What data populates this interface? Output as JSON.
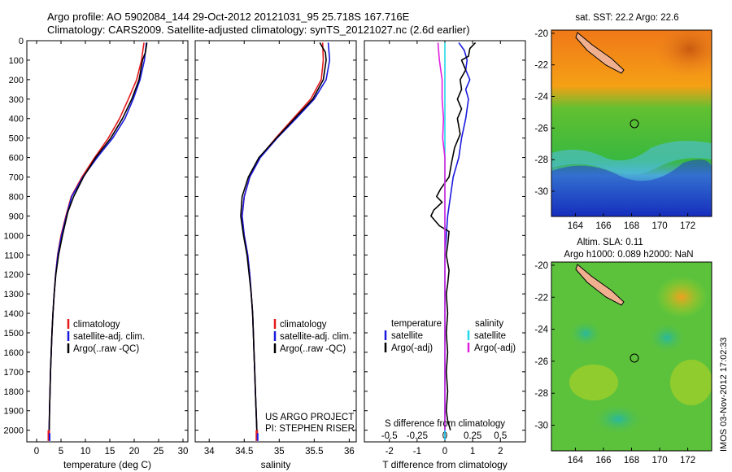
{
  "header": {
    "line1": "Argo profile: AO 5902084_144 29-Oct-2012 20121031_95 25.718S 167.716E",
    "line2": "Climatology: CARS2009. Satellite-adjusted climatology: synTS_20121027.nc (2.6d earlier)"
  },
  "colors": {
    "red": "#e41a1c",
    "blue": "#1a1adf",
    "black": "#000000",
    "cyan": "#22d8e8",
    "magenta": "#e020e0"
  },
  "panels": {
    "temperature": {
      "xlabel": "temperature (deg C)",
      "legend": [
        "climatology",
        "satellite-adj. clim.",
        "Argo(..raw -QC)"
      ]
    },
    "salinity": {
      "xlabel": "salinity",
      "legend": [
        "climatology",
        "satellite-adj. clim.",
        "Argo(..raw -QC)"
      ],
      "credit1": "US ARGO PROJECT",
      "credit2": "PI: STEPHEN RISER"
    },
    "difference": {
      "xlabel": "T difference from climatology",
      "top_xlabel": "S difference from climatology",
      "legend_head_t": "temperature",
      "legend_head_s": "salinity",
      "legend_t": [
        "satellite",
        "Argo(-adj)"
      ],
      "legend_s": [
        "satellite",
        "Argo(-adj)"
      ]
    }
  },
  "maps": {
    "sst_title": "sat. SST: 22.2  Argo: 22.6",
    "sla_title1": "Altim. SLA: 0.11",
    "sla_title2": "Argo h1000: 0.089 h2000: NaN",
    "lon_ticks": [
      "164",
      "166",
      "168",
      "170",
      "172"
    ],
    "lat_ticks": [
      "-20",
      "-22",
      "-24",
      "-26",
      "-28",
      "-30"
    ]
  },
  "footer_stamp": "IMOS 03-Nov-2012 17:02:33",
  "chart_data": [
    {
      "type": "line",
      "title": "",
      "xlabel": "temperature (deg C)",
      "ylabel": "",
      "xlim": [
        -2,
        31
      ],
      "ylim": [
        2060,
        0
      ],
      "x_ticks": [
        0,
        5,
        10,
        15,
        20,
        25,
        30
      ],
      "y_ticks": [
        0,
        100,
        200,
        300,
        400,
        500,
        600,
        700,
        800,
        900,
        1000,
        1100,
        1200,
        1300,
        1400,
        1500,
        1600,
        1700,
        1800,
        1900,
        2000
      ],
      "series": [
        {
          "name": "climatology",
          "color": "red",
          "points": [
            [
              22.0,
              10
            ],
            [
              21.5,
              100
            ],
            [
              20.5,
              200
            ],
            [
              18.8,
              300
            ],
            [
              17.0,
              400
            ],
            [
              14.7,
              500
            ],
            [
              11.9,
              600
            ],
            [
              9.3,
              700
            ],
            [
              7.1,
              800
            ],
            [
              6.0,
              900
            ],
            [
              5.0,
              1000
            ],
            [
              4.3,
              1100
            ],
            [
              3.9,
              1200
            ],
            [
              3.6,
              1300
            ],
            [
              3.35,
              1400
            ],
            [
              3.15,
              1500
            ],
            [
              3.0,
              1600
            ],
            [
              2.85,
              1700
            ],
            [
              2.75,
              1800
            ],
            [
              2.65,
              1900
            ],
            [
              2.55,
              2000
            ],
            [
              2.5,
              2050
            ]
          ]
        },
        {
          "name": "satellite-adj. clim.",
          "color": "blue",
          "points": [
            [
              22.5,
              10
            ],
            [
              22.1,
              100
            ],
            [
              21.2,
              200
            ],
            [
              19.8,
              300
            ],
            [
              18.1,
              400
            ],
            [
              15.6,
              500
            ],
            [
              12.4,
              600
            ],
            [
              9.5,
              700
            ],
            [
              7.2,
              800
            ],
            [
              6.1,
              900
            ],
            [
              5.1,
              1000
            ],
            [
              4.35,
              1100
            ],
            [
              3.9,
              1200
            ],
            [
              3.6,
              1300
            ],
            [
              3.35,
              1400
            ],
            [
              3.15,
              1500
            ],
            [
              3.0,
              1600
            ],
            [
              2.85,
              1700
            ],
            [
              2.75,
              1800
            ],
            [
              2.65,
              1900
            ],
            [
              2.55,
              2000
            ],
            [
              2.5,
              2050
            ]
          ]
        },
        {
          "name": "Argo(..raw -QC)",
          "color": "black",
          "points": [
            [
              22.6,
              10
            ],
            [
              22.3,
              60
            ],
            [
              21.7,
              100
            ],
            [
              21.0,
              200
            ],
            [
              19.5,
              300
            ],
            [
              17.6,
              400
            ],
            [
              15.2,
              500
            ],
            [
              12.1,
              600
            ],
            [
              9.6,
              700
            ],
            [
              7.6,
              800
            ],
            [
              6.4,
              880
            ],
            [
              5.3,
              1000
            ],
            [
              4.5,
              1100
            ],
            [
              3.95,
              1200
            ],
            [
              3.6,
              1300
            ],
            [
              3.35,
              1400
            ],
            [
              3.15,
              1500
            ],
            [
              3.0,
              1600
            ],
            [
              2.85,
              1700
            ],
            [
              2.75,
              1800
            ],
            [
              2.65,
              1900
            ],
            [
              2.6,
              2000
            ]
          ]
        }
      ]
    },
    {
      "type": "line",
      "title": "",
      "xlabel": "salinity",
      "ylabel": "",
      "xlim": [
        33.8,
        36.1
      ],
      "ylim": [
        2060,
        0
      ],
      "x_ticks": [
        34,
        34.5,
        35,
        35.5,
        36
      ],
      "series": [
        {
          "name": "climatology",
          "color": "red",
          "points": [
            [
              35.62,
              10
            ],
            [
              35.63,
              100
            ],
            [
              35.6,
              200
            ],
            [
              35.45,
              300
            ],
            [
              35.2,
              400
            ],
            [
              34.95,
              500
            ],
            [
              34.72,
              600
            ],
            [
              34.58,
              700
            ],
            [
              34.5,
              800
            ],
            [
              34.47,
              900
            ],
            [
              34.5,
              1000
            ],
            [
              34.55,
              1100
            ],
            [
              34.58,
              1200
            ],
            [
              34.6,
              1300
            ],
            [
              34.62,
              1400
            ],
            [
              34.63,
              1500
            ],
            [
              34.64,
              1600
            ],
            [
              34.65,
              1700
            ],
            [
              34.66,
              1800
            ],
            [
              34.67,
              1900
            ],
            [
              34.68,
              2000
            ],
            [
              34.68,
              2050
            ]
          ]
        },
        {
          "name": "satellite-adj. clim.",
          "color": "blue",
          "points": [
            [
              35.7,
              10
            ],
            [
              35.72,
              100
            ],
            [
              35.67,
              200
            ],
            [
              35.5,
              300
            ],
            [
              35.24,
              400
            ],
            [
              34.97,
              500
            ],
            [
              34.73,
              600
            ],
            [
              34.58,
              700
            ],
            [
              34.5,
              800
            ],
            [
              34.47,
              900
            ],
            [
              34.5,
              1000
            ],
            [
              34.55,
              1100
            ],
            [
              34.58,
              1200
            ],
            [
              34.6,
              1300
            ],
            [
              34.62,
              1400
            ],
            [
              34.63,
              1500
            ],
            [
              34.64,
              1600
            ],
            [
              34.65,
              1700
            ],
            [
              34.66,
              1800
            ],
            [
              34.67,
              1900
            ],
            [
              34.68,
              2000
            ],
            [
              34.68,
              2050
            ]
          ]
        },
        {
          "name": "Argo(..raw -QC)",
          "color": "black",
          "points": [
            [
              35.58,
              10
            ],
            [
              35.66,
              60
            ],
            [
              35.67,
              100
            ],
            [
              35.63,
              200
            ],
            [
              35.48,
              300
            ],
            [
              35.22,
              400
            ],
            [
              34.96,
              500
            ],
            [
              34.71,
              600
            ],
            [
              34.56,
              700
            ],
            [
              34.47,
              800
            ],
            [
              34.45,
              900
            ],
            [
              34.49,
              1000
            ],
            [
              34.54,
              1100
            ],
            [
              34.57,
              1200
            ],
            [
              34.6,
              1300
            ],
            [
              34.62,
              1400
            ],
            [
              34.63,
              1500
            ],
            [
              34.64,
              1600
            ],
            [
              34.65,
              1700
            ],
            [
              34.66,
              1800
            ],
            [
              34.67,
              1900
            ],
            [
              34.68,
              2000
            ]
          ]
        }
      ]
    },
    {
      "type": "line",
      "title": "",
      "xlabel": "T difference from climatology",
      "top_xlabel": "S difference from climatology",
      "xlim": [
        -2.9,
        2.9
      ],
      "ylim": [
        2060,
        0
      ],
      "x_ticks": [
        -2,
        -1,
        0,
        1,
        2
      ],
      "s_ticks": [
        -0.5,
        -0.25,
        0,
        0.25,
        0.5
      ],
      "series": [
        {
          "name": "temperature satellite",
          "color": "blue",
          "points": [
            [
              0.5,
              10
            ],
            [
              0.7,
              50
            ],
            [
              0.8,
              100
            ],
            [
              0.75,
              150
            ],
            [
              0.9,
              200
            ],
            [
              0.75,
              250
            ],
            [
              0.85,
              300
            ],
            [
              0.75,
              400
            ],
            [
              0.6,
              500
            ],
            [
              0.5,
              600
            ],
            [
              0.3,
              700
            ],
            [
              0.2,
              800
            ],
            [
              0.1,
              900
            ],
            [
              0.05,
              1000
            ],
            [
              0.0,
              1100
            ],
            [
              0.0,
              1200
            ],
            [
              0.0,
              1300
            ],
            [
              0.0,
              1400
            ],
            [
              0.0,
              1500
            ],
            [
              0.0,
              1600
            ],
            [
              0.0,
              1700
            ],
            [
              0.0,
              1800
            ],
            [
              0.0,
              1900
            ],
            [
              0.0,
              2000
            ],
            [
              0.0,
              2050
            ]
          ]
        },
        {
          "name": "temperature Argo(-adj)",
          "color": "black",
          "points": [
            [
              1.1,
              10
            ],
            [
              0.9,
              40
            ],
            [
              0.85,
              80
            ],
            [
              0.6,
              100
            ],
            [
              0.75,
              150
            ],
            [
              0.55,
              200
            ],
            [
              0.6,
              250
            ],
            [
              0.45,
              300
            ],
            [
              0.6,
              350
            ],
            [
              0.45,
              400
            ],
            [
              0.55,
              480
            ],
            [
              0.35,
              550
            ],
            [
              0.25,
              620
            ],
            [
              0.15,
              700
            ],
            [
              -0.15,
              760
            ],
            [
              -0.3,
              800
            ],
            [
              -0.1,
              830
            ],
            [
              -0.4,
              870
            ],
            [
              -0.5,
              900
            ],
            [
              -0.2,
              950
            ],
            [
              0.15,
              980
            ],
            [
              0.1,
              1050
            ],
            [
              0.05,
              1100
            ],
            [
              0.15,
              1180
            ],
            [
              0.1,
              1250
            ],
            [
              0.05,
              1300
            ],
            [
              0.1,
              1400
            ],
            [
              0.05,
              1500
            ],
            [
              0.1,
              1600
            ],
            [
              0.05,
              1700
            ],
            [
              0.1,
              1800
            ],
            [
              0.05,
              1900
            ],
            [
              0.1,
              1950
            ],
            [
              0.2,
              2000
            ]
          ]
        },
        {
          "name": "salinity satellite",
          "color": "cyan",
          "points": [
            [
              0.0,
              10
            ],
            [
              0.0,
              100
            ],
            [
              0.0,
              200
            ],
            [
              0.0,
              300
            ],
            [
              0.0,
              400
            ],
            [
              0.0,
              500
            ],
            [
              0.0,
              600
            ],
            [
              0.0,
              700
            ],
            [
              0.0,
              800
            ],
            [
              0.0,
              900
            ],
            [
              0.0,
              1000
            ],
            [
              0.0,
              1100
            ],
            [
              0.0,
              1200
            ],
            [
              0.0,
              1300
            ],
            [
              0.0,
              1400
            ],
            [
              0.0,
              1500
            ],
            [
              0.0,
              1600
            ],
            [
              0.0,
              1700
            ],
            [
              0.0,
              1800
            ],
            [
              0.0,
              1900
            ],
            [
              0.0,
              2000
            ],
            [
              0.0,
              2050
            ]
          ]
        },
        {
          "name": "salinity Argo(-adj)",
          "color": "magenta",
          "points": [
            [
              -0.25,
              10
            ],
            [
              -0.2,
              100
            ],
            [
              -0.1,
              200
            ],
            [
              -0.1,
              300
            ],
            [
              -0.05,
              400
            ],
            [
              -0.08,
              500
            ],
            [
              0.0,
              600
            ],
            [
              0.0,
              700
            ],
            [
              0.0,
              800
            ],
            [
              0.0,
              900
            ],
            [
              0.0,
              1000
            ],
            [
              0.0,
              1100
            ],
            [
              0.0,
              1200
            ],
            [
              0.0,
              1300
            ],
            [
              0.0,
              1400
            ],
            [
              0.0,
              1500
            ],
            [
              0.0,
              1600
            ],
            [
              0.0,
              1700
            ],
            [
              0.0,
              1800
            ],
            [
              0.0,
              1900
            ],
            [
              0.0,
              2000
            ]
          ]
        }
      ]
    }
  ]
}
